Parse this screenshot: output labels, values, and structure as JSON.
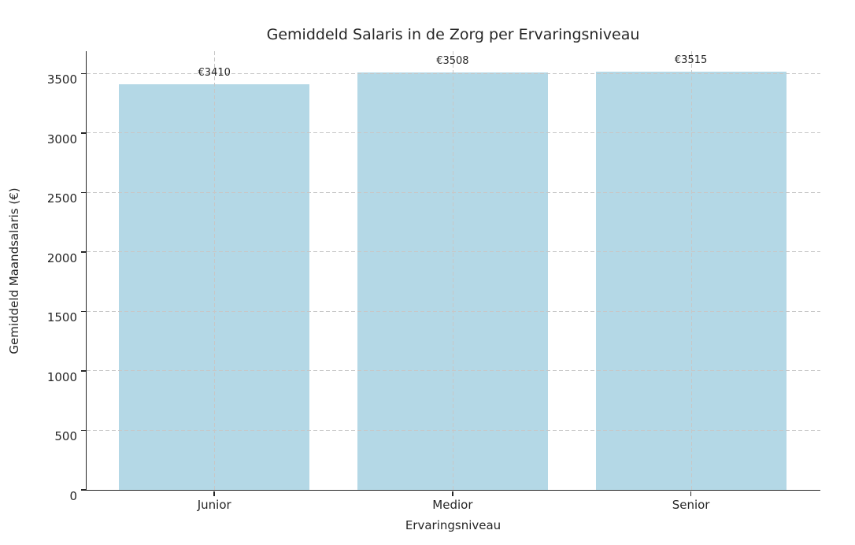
{
  "chart_data": {
    "type": "bar",
    "title": "Gemiddeld Salaris in de Zorg per Ervaringsniveau",
    "xlabel": "Ervaringsniveau",
    "ylabel": "Gemiddeld Maandsalaris (€)",
    "categories": [
      "Junior",
      "Medior",
      "Senior"
    ],
    "values": [
      3410,
      3508,
      3515
    ],
    "bar_value_labels": [
      "€3410",
      "€3508",
      "€3515"
    ],
    "yticks": [
      0,
      500,
      1000,
      1500,
      2000,
      2500,
      3000,
      3500
    ],
    "ylim": [
      0,
      3690
    ],
    "bar_color": "#b4d8e6",
    "grid": "dashed horizontal and vertical gridlines drawn over bars",
    "gridline_color": "#c7c7c7",
    "legend_position": "none"
  }
}
